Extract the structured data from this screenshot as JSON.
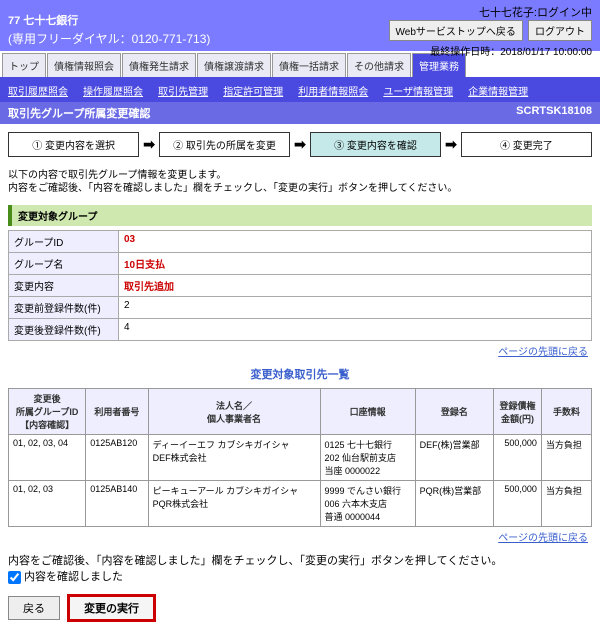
{
  "header": {
    "bank_small": "BANK",
    "bank_name": "77 七十七銀行",
    "dial": "(専用フリーダイヤル：0120-771-713)",
    "user_info": "七十七花子:ログイン中",
    "btn_back": "Webサービストップへ戻る",
    "btn_logout": "ログアウト",
    "timestamp": "最終操作日時：2018/01/17 10:00:00"
  },
  "tabs": [
    "トップ",
    "債権情報照会",
    "債権発生請求",
    "債権譲渡請求",
    "債権一括請求",
    "その他請求",
    "管理業務"
  ],
  "subnav": [
    "取引履歴照会",
    "操作履歴照会",
    "取引先管理",
    "指定許可管理",
    "利用者情報照会",
    "ユーザ情報管理",
    "企業情報管理"
  ],
  "page": {
    "title": "取引先グループ所属変更確認",
    "code": "SCRTSK18108"
  },
  "steps": [
    "① 変更内容を選択",
    "② 取引先の所属を変更",
    "③ 変更内容を確認",
    "④ 変更完了"
  ],
  "arrow": "➡",
  "note": "以下の内容で取引先グループ情報を変更します。\n内容をご確認後、「内容を確認しました」欄をチェックし、「変更の実行」ボタンを押してください。",
  "group_section": "変更対象グループ",
  "group_rows": [
    {
      "label": "グループID",
      "value": "03",
      "red": true
    },
    {
      "label": "グループ名",
      "value": "10日支払",
      "red": true
    },
    {
      "label": "変更内容",
      "value": "取引先追加",
      "red": true
    },
    {
      "label": "変更前登録件数(件)",
      "value": "2"
    },
    {
      "label": "変更後登録件数(件)",
      "value": "4"
    }
  ],
  "link_top": "ページの先頭に戻る",
  "list_title": "変更対象取引先一覧",
  "list_cols": [
    "変更後\n所属グループID\n【内容確認】",
    "利用者番号",
    "法人名／\n個人事業者名",
    "口座情報",
    "登録名",
    "登録債権\n金額(円)",
    "手数料"
  ],
  "list_rows": [
    {
      "g": "01, 02, 03, 04",
      "u": "0125AB120",
      "n": "ディーイーエフ カブシキガイシャ\nDEF株式会社",
      "a": "0125 七十七銀行\n202 仙台駅前支店\n当座 0000022",
      "r": "DEF(株)営業部",
      "m": "500,000",
      "f": "当方負担"
    },
    {
      "g": "01, 02, 03",
      "u": "0125AB140",
      "n": "ピーキューアール カブシキガイシャ\nPQR株式会社",
      "a": "9999 でんさい銀行\n006 六本木支店\n普通 0000044",
      "r": "PQR(株)営業部",
      "m": "500,000",
      "f": "当方負担"
    }
  ],
  "confirm_note": "内容をご確認後、「内容を確認しました」欄をチェックし、「変更の実行」ボタンを押してください。",
  "confirm_label": "内容を確認しました",
  "btn_back_page": "戻る",
  "btn_exec": "変更の実行"
}
